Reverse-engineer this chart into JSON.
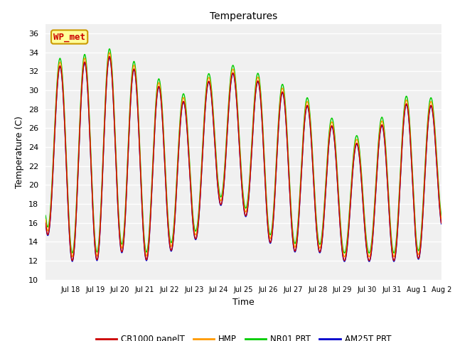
{
  "title": "Temperatures",
  "xlabel": "Time",
  "ylabel": "Temperature (C)",
  "ylim": [
    10,
    37
  ],
  "yticks": [
    10,
    12,
    14,
    16,
    18,
    20,
    22,
    24,
    26,
    28,
    30,
    32,
    34,
    36
  ],
  "bg_color": "#ffffff",
  "plot_bg_color": "#f0f0f0",
  "legend_labels": [
    "CR1000 panelT",
    "HMP",
    "NR01 PRT",
    "AM25T PRT"
  ],
  "legend_colors": [
    "#cc0000",
    "#ff9900",
    "#00cc00",
    "#0000cc"
  ],
  "annotation_text": "WP_met",
  "annotation_color": "#cc0000",
  "annotation_bg": "#ffff99",
  "annotation_border": "#cc9900",
  "tick_labels": [
    "Jul 18",
    "Jul 19",
    "Jul 20",
    "Jul 21",
    "Jul 22",
    "Jul 23",
    "Jul 24",
    "Jul 25",
    "Jul 26",
    "Jul 27",
    "Jul 28",
    "Jul 29",
    "Jul 30",
    "Jul 31",
    "Aug 1",
    "Aug 2"
  ],
  "peaks": [
    32,
    33,
    33,
    34,
    31,
    30,
    28,
    33,
    31,
    31,
    29,
    28,
    25,
    24,
    28,
    29,
    28
  ],
  "mins": [
    15,
    12,
    12,
    13,
    12,
    13,
    14,
    18,
    17,
    14,
    13,
    13,
    12,
    12,
    12,
    12,
    15
  ]
}
